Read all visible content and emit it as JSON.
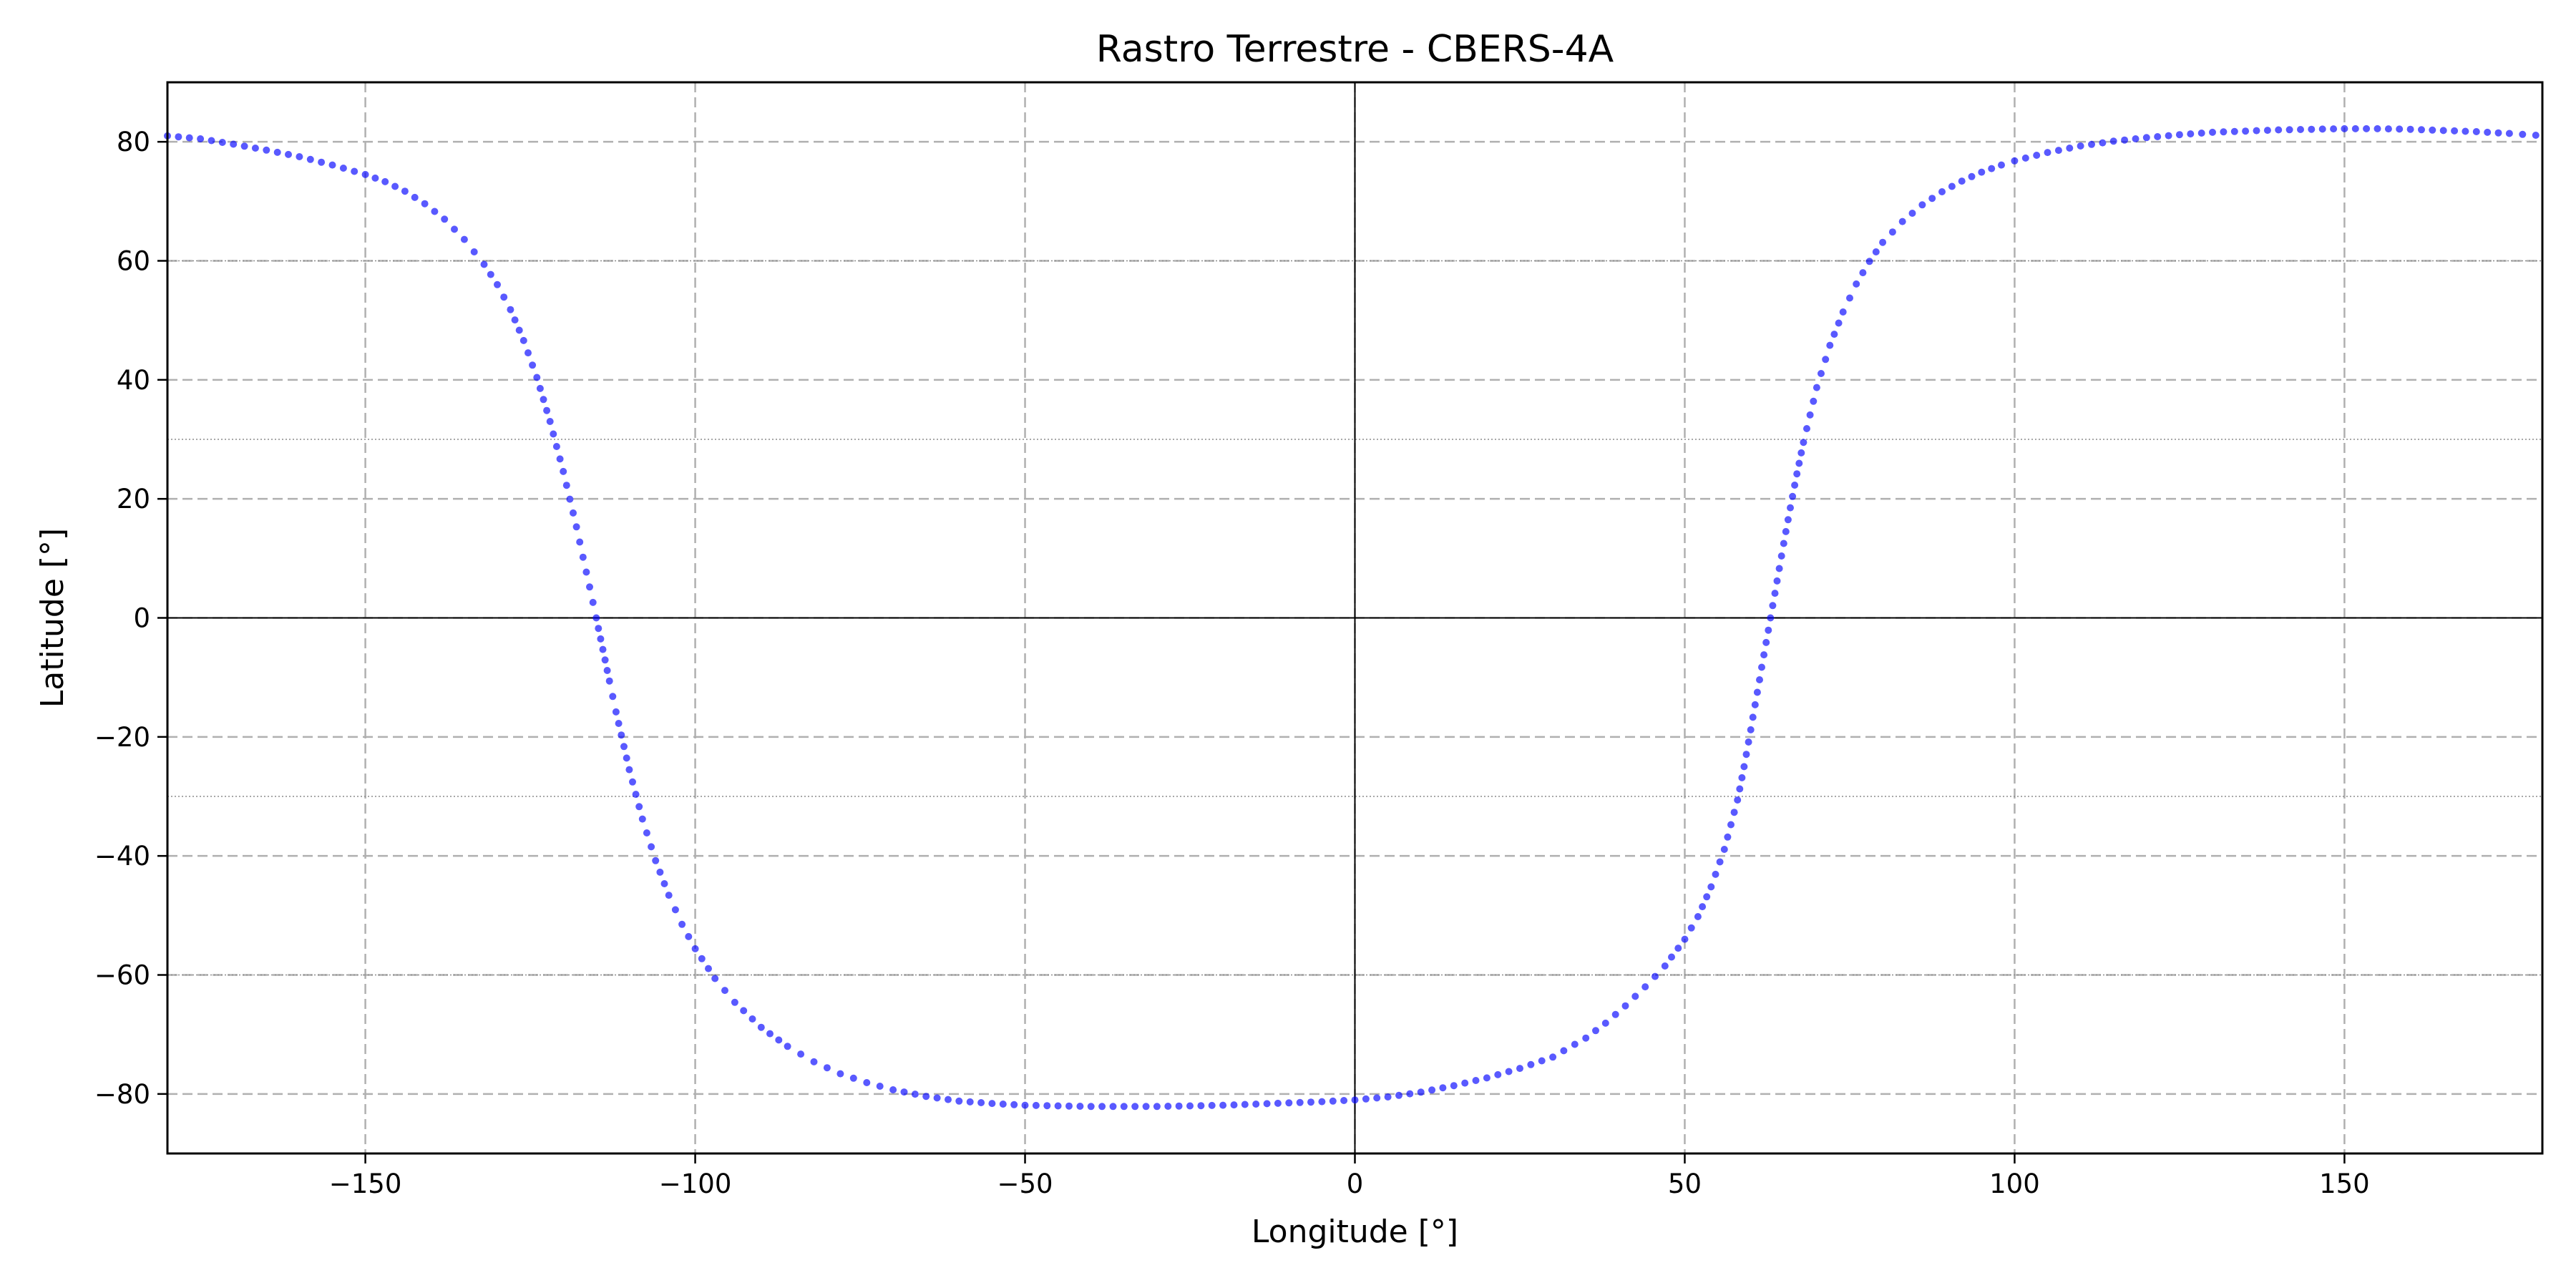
{
  "chart_data": {
    "type": "scatter",
    "title": "Rastro Terrestre - CBERS-4A",
    "xlabel": "Longitude [°]",
    "ylabel": "Latitude [°]",
    "xlim": [
      -180,
      180
    ],
    "ylim": [
      -90,
      90
    ],
    "xticks": [
      -150,
      -100,
      -50,
      0,
      50,
      100,
      150
    ],
    "yticks": [
      -80,
      -60,
      -40,
      -20,
      0,
      20,
      40,
      60,
      80
    ],
    "xtick_labels": [
      "−150",
      "−100",
      "−50",
      "0",
      "50",
      "100",
      "150"
    ],
    "ytick_labels": [
      "−80",
      "−60",
      "−40",
      "−20",
      "0",
      "20",
      "40",
      "60",
      "80"
    ],
    "minor_hlines": [
      -60,
      -30,
      30,
      60
    ],
    "grid": true,
    "legend": "none",
    "color": "#0000ff",
    "series": [
      {
        "x": [
          -180,
          -175,
          -170,
          -165,
          -160,
          -155,
          -150,
          -147,
          -144,
          -141,
          -138,
          -135,
          -132,
          -130,
          -128,
          -126,
          -124,
          -122,
          -120,
          -118,
          -117,
          -116,
          -115,
          -114,
          -113,
          -112,
          -110,
          -108,
          -106,
          -104,
          -102,
          -100,
          -97,
          -94,
          -90,
          -86,
          -82,
          -78,
          -74,
          -70,
          -65,
          -60,
          -55,
          -50,
          -45,
          -40,
          -35,
          -30,
          -25,
          -20,
          -15,
          -10,
          -5,
          0,
          5,
          10,
          15,
          20,
          25,
          30,
          35,
          38,
          41,
          44,
          47,
          50,
          52,
          54,
          56,
          58,
          59,
          60,
          61,
          62,
          63,
          64,
          65,
          66,
          67,
          68,
          70,
          72,
          74,
          76,
          78,
          80,
          83,
          86,
          89,
          92,
          95,
          98,
          100,
          105,
          110,
          115,
          120,
          125,
          130,
          135,
          140,
          145,
          150,
          155,
          160,
          165,
          170,
          175,
          179
        ],
        "y": [
          81,
          80.5,
          79.6,
          78.6,
          77.5,
          76.1,
          74.5,
          73.3,
          71.7,
          69.6,
          67,
          63.6,
          59.4,
          56,
          51.8,
          46.6,
          40.4,
          33,
          24.6,
          15.3,
          10.2,
          5.2,
          0,
          -5.3,
          -10.6,
          -15.8,
          -25.5,
          -33.8,
          -40.8,
          -46.6,
          -51.5,
          -55.6,
          -60.6,
          -64.6,
          -68.8,
          -72,
          -74.6,
          -76.6,
          -78.1,
          -79.3,
          -80.4,
          -81.2,
          -81.6,
          -81.9,
          -82,
          -82.1,
          -82.1,
          -82.1,
          -82,
          -81.9,
          -81.7,
          -81.5,
          -81.3,
          -81,
          -80.5,
          -79.7,
          -78.6,
          -77.3,
          -75.7,
          -73.8,
          -70.6,
          -68.1,
          -65.2,
          -62,
          -58.5,
          -54,
          -50.2,
          -45.2,
          -38.9,
          -30.6,
          -25,
          -18.8,
          -12.5,
          -6.2,
          0,
          6.2,
          12.5,
          18.5,
          24.2,
          29.5,
          38.7,
          45.8,
          51.4,
          56.1,
          59.9,
          63.1,
          66.6,
          69.4,
          71.6,
          73.4,
          74.9,
          76.1,
          76.8,
          78.2,
          79.3,
          80.1,
          80.7,
          81.2,
          81.6,
          81.8,
          82,
          82.1,
          82.2,
          82.2,
          82.1,
          81.9,
          81.7,
          81.4,
          81.1
        ]
      }
    ]
  }
}
